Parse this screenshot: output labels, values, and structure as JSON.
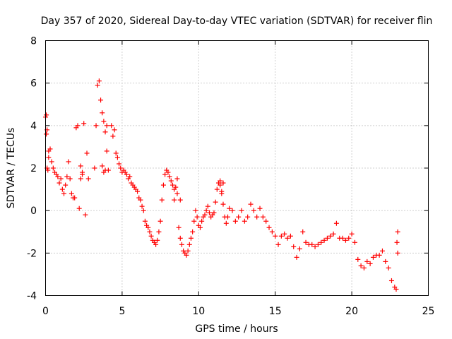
{
  "chart_data": {
    "type": "scatter",
    "title": "Day 357 of 2020, Sidereal Day-to-day VTEC variation (SDTVAR) for receiver flin",
    "xlabel": "GPS time / hours",
    "ylabel": "SDTVAR / TECUs",
    "xlim": [
      0,
      25
    ],
    "ylim": [
      -4,
      8
    ],
    "xticks": [
      0,
      5,
      10,
      15,
      20,
      25
    ],
    "xtick_labels": [
      "0",
      "5",
      "10",
      "15",
      "20",
      "25"
    ],
    "yticks": [
      -4,
      -2,
      0,
      2,
      4,
      6,
      8
    ],
    "ytick_labels": [
      "-4",
      "-2",
      "0",
      "2",
      "4",
      "6",
      "8"
    ],
    "grid": true,
    "marker": "+",
    "color": "#ff0000",
    "series": [
      {
        "name": "SDTVAR",
        "x": [
          0.0,
          0.05,
          0.1,
          0.15,
          0.2,
          0.3,
          0.4,
          0.5,
          0.6,
          0.7,
          0.8,
          0.9,
          1.0,
          1.1,
          1.2,
          1.3,
          1.4,
          1.5,
          1.6,
          1.7,
          1.8,
          1.9,
          2.0,
          2.1,
          2.2,
          2.3,
          2.4,
          2.5,
          2.6,
          2.7,
          2.8,
          3.2,
          3.3,
          3.4,
          3.5,
          3.6,
          3.7,
          3.8,
          3.9,
          4.0,
          4.1,
          4.3,
          4.4,
          4.5,
          4.6,
          4.7,
          4.8,
          4.9,
          5.0,
          5.1,
          5.2,
          5.3,
          5.4,
          5.5,
          5.6,
          5.7,
          5.8,
          5.9,
          6.0,
          6.1,
          6.2,
          6.3,
          6.4,
          6.5,
          6.6,
          6.7,
          6.8,
          6.9,
          7.0,
          7.1,
          7.2,
          7.3,
          7.4,
          7.5,
          7.6,
          7.7,
          7.8,
          7.9,
          8.0,
          8.1,
          8.2,
          8.3,
          8.4,
          8.5,
          8.6,
          8.7,
          8.8,
          8.9,
          9.0,
          9.1,
          9.2,
          9.3,
          9.4,
          9.5,
          9.6,
          9.7,
          9.8,
          9.9,
          10.0,
          10.1,
          10.2,
          10.3,
          10.4,
          10.5,
          10.6,
          10.7,
          10.8,
          10.9,
          11.0,
          11.1,
          11.2,
          11.3,
          11.4,
          11.5,
          11.6,
          11.7,
          11.8,
          11.9,
          12.0,
          12.2,
          12.4,
          12.6,
          12.8,
          13.0,
          13.2,
          13.4,
          13.6,
          13.8,
          14.0,
          14.2,
          14.4,
          14.6,
          14.8,
          15.0,
          15.2,
          15.4,
          15.6,
          15.8,
          16.0,
          16.2,
          16.4,
          16.6,
          16.8,
          17.0,
          17.2,
          17.4,
          17.6,
          17.8,
          18.0,
          18.2,
          18.4,
          18.6,
          18.8,
          19.0,
          19.2,
          19.4,
          19.6,
          19.8,
          20.0,
          20.2,
          20.4,
          20.6,
          20.8,
          21.0,
          21.2,
          21.4,
          21.6,
          21.8,
          22.0,
          22.2,
          22.4,
          22.6,
          22.8,
          22.9,
          23.0,
          0.05,
          0.1,
          0.2,
          2.3,
          2.4,
          3.7,
          3.8,
          3.9,
          4.0,
          8.4,
          8.6,
          8.8,
          11.4,
          11.5,
          11.6,
          22.95,
          23.0
        ],
        "y": [
          4.4,
          3.6,
          2.0,
          1.9,
          2.8,
          2.9,
          2.3,
          2.0,
          1.8,
          1.7,
          1.6,
          1.3,
          1.5,
          1.0,
          0.8,
          1.2,
          1.6,
          2.3,
          1.5,
          0.8,
          0.6,
          0.6,
          3.9,
          4.0,
          0.1,
          1.5,
          1.8,
          4.1,
          -0.2,
          2.7,
          1.5,
          2.0,
          4.0,
          5.9,
          6.1,
          5.2,
          4.6,
          4.2,
          3.7,
          2.8,
          1.9,
          4.0,
          3.5,
          3.8,
          2.7,
          2.5,
          2.2,
          2.0,
          1.8,
          1.9,
          1.8,
          1.7,
          1.5,
          1.6,
          1.3,
          1.2,
          1.1,
          1.0,
          0.9,
          0.6,
          0.5,
          0.2,
          0.0,
          -0.5,
          -0.7,
          -0.8,
          -1.0,
          -1.2,
          -1.4,
          -1.5,
          -1.6,
          -1.4,
          -1.0,
          -0.5,
          0.5,
          1.2,
          1.7,
          1.9,
          1.8,
          1.6,
          1.4,
          1.2,
          1.0,
          1.1,
          0.8,
          -0.8,
          -1.3,
          -1.6,
          -1.9,
          -2.0,
          -2.1,
          -1.9,
          -1.6,
          -1.3,
          -1.0,
          -0.5,
          0.0,
          -0.3,
          -0.7,
          -0.8,
          -0.5,
          -0.3,
          -0.2,
          0.0,
          0.2,
          -0.1,
          -0.3,
          -0.2,
          -0.1,
          0.4,
          1.0,
          1.3,
          1.2,
          0.8,
          0.3,
          -0.3,
          -0.6,
          -0.3,
          0.1,
          0.0,
          -0.5,
          -0.3,
          0.0,
          -0.5,
          -0.3,
          0.3,
          0.0,
          -0.3,
          0.1,
          -0.3,
          -0.5,
          -0.8,
          -1.0,
          -1.2,
          -1.6,
          -1.2,
          -1.1,
          -1.3,
          -1.2,
          -1.7,
          -2.2,
          -1.8,
          -1.0,
          -1.5,
          -1.6,
          -1.6,
          -1.7,
          -1.6,
          -1.5,
          -1.4,
          -1.3,
          -1.2,
          -1.1,
          -0.6,
          -1.3,
          -1.3,
          -1.4,
          -1.3,
          -1.1,
          -1.5,
          -2.3,
          -2.6,
          -2.7,
          -2.4,
          -2.5,
          -2.2,
          -2.1,
          -2.1,
          -1.9,
          -2.4,
          -2.7,
          -3.3,
          -3.6,
          -3.7,
          -1.0,
          4.5,
          3.8,
          2.5,
          2.1,
          1.7,
          2.1,
          1.8,
          1.9,
          4.0,
          0.5,
          1.5,
          0.5,
          1.4,
          0.9,
          1.3,
          -1.5,
          -2.0
        ]
      }
    ]
  }
}
